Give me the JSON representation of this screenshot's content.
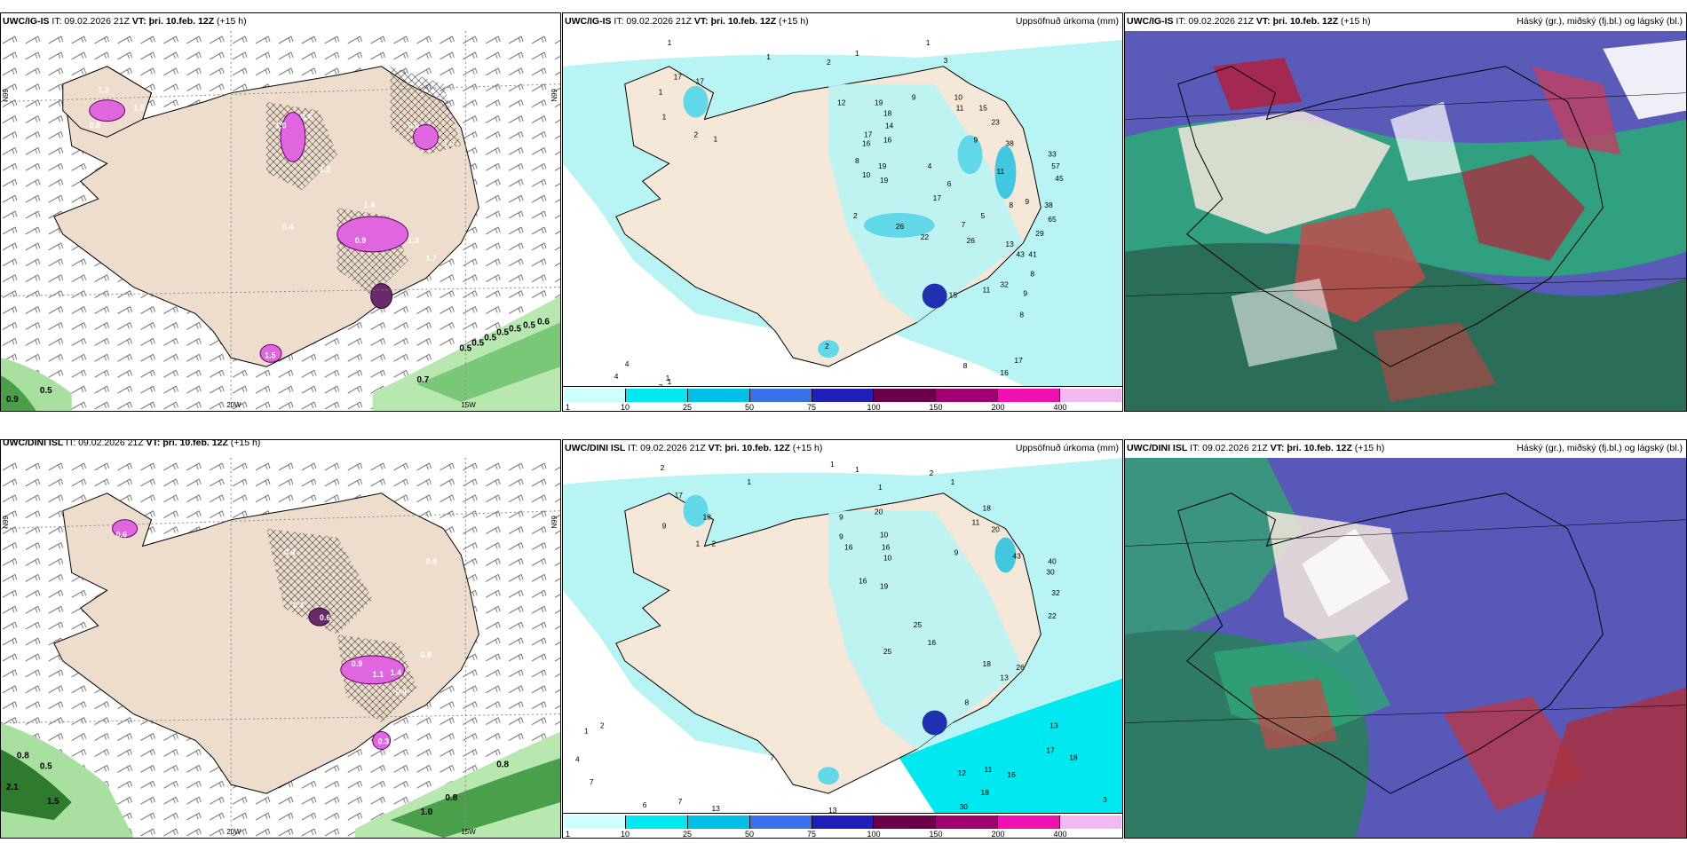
{
  "panels": {
    "p1": {
      "title_model": "UWC/IG-IS",
      "title_it": "IT: 09.02.2026 21Z",
      "title_vt": "VT: þri. 10.feb. 12Z",
      "title_lead": "(+15 h)",
      "right": ""
    },
    "p2": {
      "title_model": "UWC/IG-IS",
      "title_it": "IT: 09.02.2026 21Z",
      "title_vt": "VT: þri. 10.feb. 12Z",
      "title_lead": "(+15 h)",
      "right": "Uppsöfnuð úrkoma (mm)"
    },
    "p3": {
      "title_model": "UWC/IG-IS",
      "title_it": "IT: 09.02.2026 21Z",
      "title_vt": "VT: þri. 10.feb. 12Z",
      "title_lead": "(+15 h)",
      "right": "Háský (gr.), miðský (fj.bl.) og lágský (bl.)"
    },
    "p4": {
      "title_model": "UWC/DINI ISL",
      "title_it": "IT: 09.02.2026 21Z",
      "title_vt": "VT: þri. 10.feb. 12Z",
      "title_lead": "(+15 h)",
      "right": ""
    },
    "p5": {
      "title_model": "UWC/DINI ISL",
      "title_it": "IT: 09.02.2026 21Z",
      "title_vt": "VT: þri. 10.feb. 12Z",
      "title_lead": "(+15 h)",
      "right": "Uppsöfnuð úrkoma (mm)"
    },
    "p6": {
      "title_model": "UWC/DINI ISL",
      "title_it": "IT: 09.02.2026 21Z",
      "title_vt": "VT: þri. 10.feb. 12Z",
      "title_lead": "(+15 h)",
      "right": "Háský (gr.), miðský (fj.bl.) og lágský (bl.)"
    }
  },
  "axes": {
    "lon_left": "20W",
    "lon_right": "15W",
    "lat": "N°66",
    "lat_alt": "N99"
  },
  "colorbar": {
    "ticks": [
      "1",
      "10",
      "25",
      "50",
      "75",
      "100",
      "150",
      "200",
      "400"
    ],
    "colors": [
      "#ccffff",
      "#00e8f0",
      "#00c0e8",
      "#3a70e8",
      "#2020b8",
      "#6a0048",
      "#a00070",
      "#ee10b0",
      "#f4b8f0"
    ]
  },
  "precip_labels_top": [
    "1",
    "1",
    "2",
    "1",
    "1",
    "3",
    "17",
    "17",
    "1",
    "1",
    "2",
    "1",
    "12",
    "19",
    "18",
    "14",
    "16",
    "9",
    "10",
    "11",
    "15",
    "23",
    "17",
    "16",
    "9",
    "38",
    "33",
    "57",
    "45",
    "8",
    "19",
    "4",
    "11",
    "10",
    "19",
    "17",
    "6",
    "8",
    "9",
    "38",
    "2",
    "26",
    "22",
    "26",
    "65",
    "29",
    "7",
    "5",
    "43",
    "41",
    "13",
    "8",
    "9",
    "8",
    "32",
    "17",
    "16",
    "8",
    "3",
    "1",
    "4",
    "4",
    "1",
    "2",
    "15",
    "11"
  ],
  "precip_labels_bottom": [
    "2",
    "1",
    "1",
    "1",
    "1",
    "2",
    "1",
    "17",
    "18",
    "9",
    "1",
    "2",
    "9",
    "9",
    "16",
    "10",
    "16",
    "10",
    "20",
    "18",
    "11",
    "20",
    "9",
    "43",
    "40",
    "30",
    "32",
    "16",
    "19",
    "25",
    "16",
    "22",
    "25",
    "18",
    "26",
    "13",
    "8",
    "13",
    "17",
    "18",
    "16",
    "11",
    "12",
    "18",
    "30",
    "3",
    "7",
    "6",
    "7",
    "13",
    "1",
    "2",
    "4",
    "7",
    "13"
  ],
  "wind_values_top": [
    "0.9",
    "0.5",
    "0.7",
    "0.5",
    "0.5",
    "0.5",
    "0.5",
    "0.5",
    "0.5",
    "0.6"
  ],
  "wind_values_bottom": [
    "0.8",
    "0.5",
    "2.1",
    "1.5",
    "0.8",
    "1.0",
    "0.8"
  ],
  "snow_values_top": [
    "1.2",
    "1.5",
    "0.8",
    "1.0",
    "1.6",
    "1.2",
    "0.6",
    "1.0",
    "1.4",
    "0.4",
    "0.9",
    "1.3",
    "1.5",
    "1.7"
  ],
  "snow_values_bottom": [
    "0.6",
    "0.4",
    "0.8",
    "0.6",
    "0.9",
    "1.1",
    "1.4",
    "0.4",
    "0.8",
    "0.6",
    "0.3"
  ]
}
